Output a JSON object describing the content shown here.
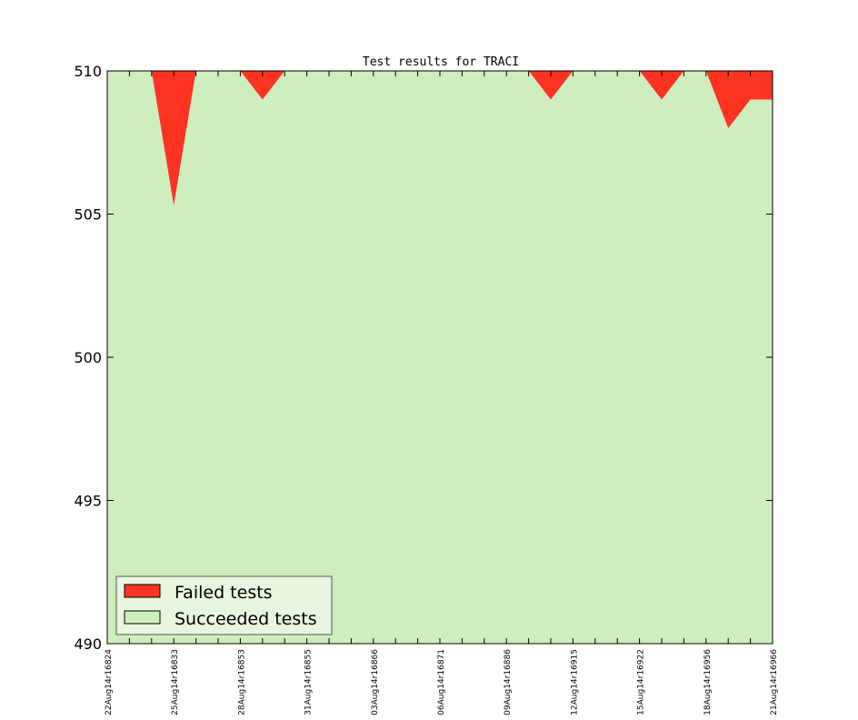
{
  "chart_data": {
    "type": "area",
    "title": "Test results for TRACI",
    "xlabel": "",
    "ylabel": "",
    "ylim": [
      490,
      510
    ],
    "yticks": [
      490,
      495,
      500,
      505,
      510
    ],
    "x_tick_labels": [
      "22Aug14r16824",
      "25Aug14r16833",
      "28Aug14r16853",
      "31Aug14r16855",
      "03Aug14r16866",
      "06Aug14r16871",
      "09Aug14r16886",
      "12Aug14r16915",
      "15Aug14r16922",
      "18Aug14r16956",
      "21Aug14r16966"
    ],
    "x_points": [
      0,
      1,
      2,
      3,
      4,
      5,
      6,
      7,
      8,
      9,
      10,
      11,
      12,
      13,
      14,
      15,
      16,
      17,
      18,
      19,
      20,
      21,
      22,
      23,
      24,
      25,
      26,
      27,
      28,
      29,
      30
    ],
    "series": [
      {
        "name": "Failed tests",
        "color": "#ff3322",
        "values": [
          0,
          0,
          0,
          4.7,
          0,
          0,
          0,
          1,
          0,
          0,
          0,
          0,
          0,
          0,
          0,
          0,
          0,
          0,
          0,
          0,
          1,
          0,
          0,
          0,
          0,
          1,
          0,
          0,
          2,
          1,
          1
        ]
      },
      {
        "name": "Succeeded tests",
        "color": "#cfeebf",
        "values": [
          510,
          510,
          510,
          505.3,
          510,
          510,
          510,
          509,
          510,
          510,
          510,
          510,
          510,
          510,
          510,
          510,
          510,
          510,
          510,
          510,
          509,
          510,
          510,
          510,
          510,
          509,
          510,
          510,
          508,
          509,
          509
        ]
      }
    ],
    "legend": {
      "placement": "lower-left",
      "entries": [
        "Failed tests",
        "Succeeded tests"
      ]
    },
    "grid": false
  }
}
